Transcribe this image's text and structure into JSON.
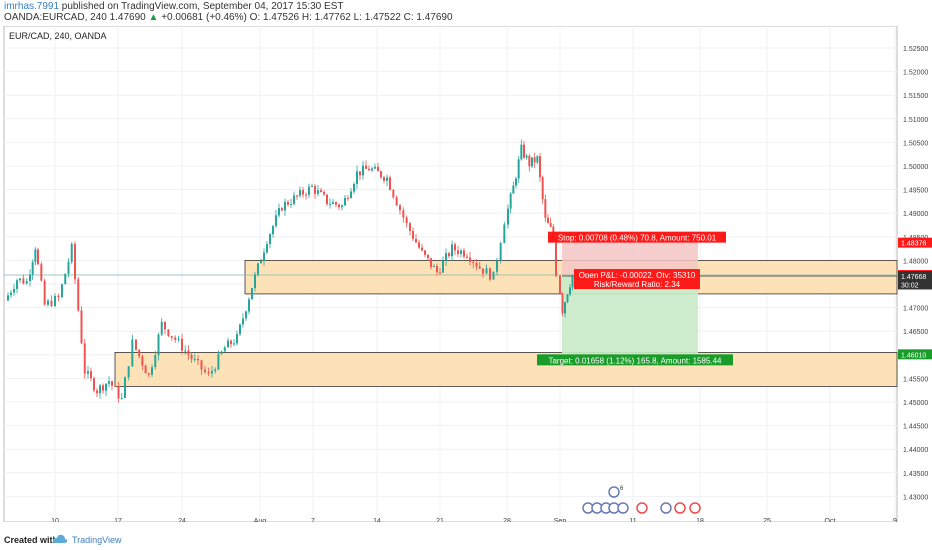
{
  "header": {
    "user": "imrhas.7991",
    "published": " published on TradingView.com, September 04, 2017 15:30 EST",
    "symbol": "OANDA:EURCAD, 240",
    "last": "1.47690",
    "arrow": "▲",
    "change": "+0.00681 (+0.46%)",
    "ohlc": "O: 1.47526  H: 1.47762  L: 1.47522  C: 1.47690"
  },
  "chart": {
    "legend": "EUR/CAD, 240, OANDA",
    "colors": {
      "up": "#26a69a",
      "down": "#ef5350",
      "zone_fill": "#fde2b8",
      "zone_border": "#333333",
      "stop_fill": "#f6c6c6",
      "target_fill": "#c9ebc9",
      "badge_red": "#ff1a1a",
      "badge_green": "#1a9c2a",
      "badge_dark": "#333333",
      "hline": "#7fb8a8"
    },
    "y_ticks": [
      "1.52500",
      "1.52000",
      "1.51500",
      "1.51000",
      "1.50500",
      "1.50000",
      "1.49500",
      "1.49000",
      "1.48500",
      "1.48000",
      "1.47500",
      "1.47000",
      "1.46500",
      "1.46000",
      "1.45500",
      "1.45000",
      "1.44500",
      "1.44000",
      "1.43500",
      "1.43000"
    ],
    "x_ticks": [
      "10",
      "17",
      "24",
      "Aug",
      "7",
      "14",
      "21",
      "28",
      "Sep",
      "11",
      "18",
      "25",
      "Oct",
      "9"
    ],
    "price_badges": [
      {
        "label": "1.48376",
        "price": 1.48376,
        "color": "red"
      },
      {
        "label": "1.47690",
        "price": 1.4769,
        "color": "red"
      },
      {
        "label": "30:02",
        "price": 1.4749,
        "color": "dark"
      },
      {
        "label": "1.47668",
        "price": 1.47668,
        "color": "dark"
      },
      {
        "label": "1.46010",
        "price": 1.4601,
        "color": "green"
      }
    ],
    "zones": [
      {
        "from": 1.48,
        "to": 1.4729
      },
      {
        "from": 1.4605,
        "to": 1.4533
      }
    ],
    "position": {
      "entry": 1.47668,
      "stop": 1.48376,
      "target": 1.4601,
      "stop_label": "Stop: 0.00708 (0.48%) 70.8, Amount: 750.01",
      "pl_label": "Open P&L: -0.00022, Qty: 35310",
      "rr_label": "Risk/Reward Ratio: 2.34",
      "target_label": "Target: 0.01658 (1.12%) 165.8, Amount: 1585.44"
    },
    "events_label": "6"
  },
  "footer": {
    "created": "Created with",
    "brand": "TradingView"
  }
}
